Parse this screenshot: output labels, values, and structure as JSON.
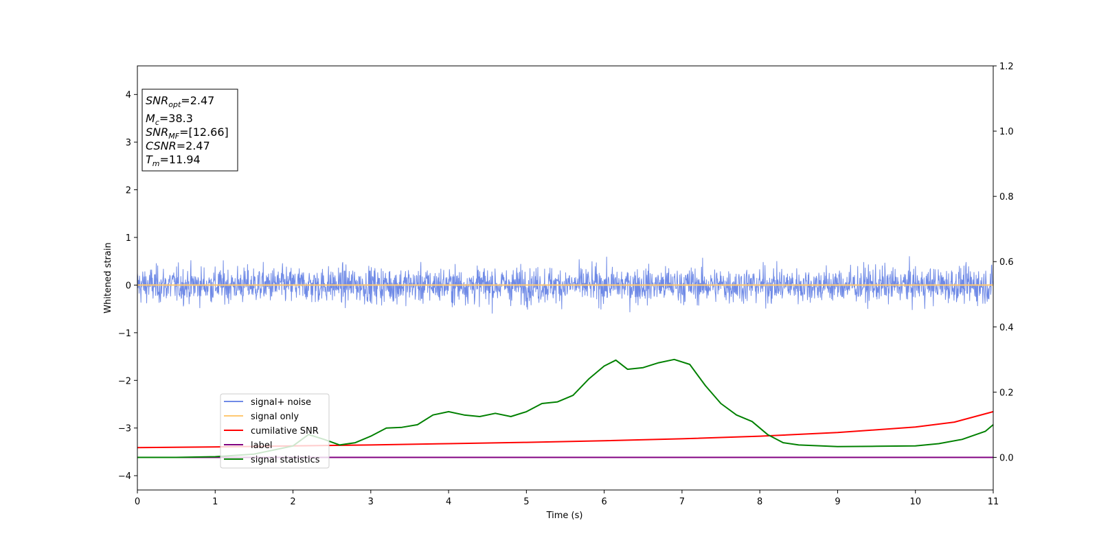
{
  "chart_data": {
    "type": "line",
    "xlabel": "Time (s)",
    "ylabel": "Whitened strain",
    "xlim": [
      0,
      11
    ],
    "ylim_left": [
      -4.3,
      4.6
    ],
    "ylim_right": [
      -0.1,
      1.2
    ],
    "xticks": [
      0,
      1,
      2,
      3,
      4,
      5,
      6,
      7,
      8,
      9,
      10,
      11
    ],
    "yticks_left": [
      -4,
      -3,
      -2,
      -1,
      0,
      1,
      2,
      3,
      4
    ],
    "yticks_right": [
      0.0,
      0.2,
      0.4,
      0.6,
      0.8,
      1.0,
      1.2
    ],
    "grid": false,
    "legend_placement": "lower-left",
    "info_box": {
      "snr_opt": {
        "var": "SNR",
        "sub": "opt",
        "value": "=2.47"
      },
      "mc": {
        "var": "M",
        "sub": "c",
        "value": "=38.3"
      },
      "snr_mf": {
        "var": "SNR",
        "sub": "MF",
        "value": "=[12.66]"
      },
      "csnr": {
        "var": "CSNR",
        "sub": "",
        "value": "=2.47"
      },
      "tm": {
        "var": "T",
        "sub": "m",
        "value": "=11.94"
      }
    },
    "series": [
      {
        "name": "signal+ noise",
        "axis": "left",
        "color": "#6f8ae6",
        "style": "noise",
        "amplitude_sigma": 0.24,
        "peak_excursion": [
          -0.95,
          0.95
        ],
        "mean": 0.0
      },
      {
        "name": "signal only",
        "axis": "left",
        "color": "#ffc870",
        "x": [
          0,
          11
        ],
        "y": [
          0.0,
          0.0
        ]
      },
      {
        "name": "cumilative SNR",
        "axis": "right",
        "color": "#ff0000",
        "x": [
          0,
          1,
          2,
          3,
          4,
          5,
          6,
          7,
          8,
          9,
          10,
          10.5,
          11
        ],
        "y": [
          0.03,
          0.032,
          0.035,
          0.038,
          0.042,
          0.046,
          0.051,
          0.057,
          0.065,
          0.076,
          0.093,
          0.108,
          0.14
        ]
      },
      {
        "name": "label",
        "axis": "right",
        "color": "#800080",
        "x": [
          0,
          11
        ],
        "y": [
          0.0,
          0.0
        ]
      },
      {
        "name": "signal statistics",
        "axis": "right",
        "color": "#008000",
        "x": [
          0,
          0.5,
          1.0,
          1.5,
          1.8,
          2.0,
          2.2,
          2.4,
          2.6,
          2.8,
          3.0,
          3.2,
          3.4,
          3.6,
          3.8,
          4.0,
          4.2,
          4.4,
          4.6,
          4.8,
          5.0,
          5.2,
          5.4,
          5.6,
          5.8,
          6.0,
          6.15,
          6.3,
          6.5,
          6.7,
          6.9,
          7.1,
          7.3,
          7.5,
          7.7,
          7.9,
          8.1,
          8.3,
          8.5,
          9.0,
          9.5,
          10.0,
          10.3,
          10.6,
          10.9,
          11.0
        ],
        "y": [
          0.0,
          0.0,
          0.002,
          0.01,
          0.025,
          0.035,
          0.07,
          0.055,
          0.038,
          0.045,
          0.065,
          0.09,
          0.092,
          0.1,
          0.13,
          0.14,
          0.13,
          0.125,
          0.135,
          0.125,
          0.14,
          0.165,
          0.17,
          0.19,
          0.24,
          0.28,
          0.298,
          0.27,
          0.275,
          0.29,
          0.3,
          0.285,
          0.22,
          0.165,
          0.13,
          0.11,
          0.07,
          0.045,
          0.038,
          0.033,
          0.034,
          0.035,
          0.042,
          0.055,
          0.08,
          0.1
        ]
      }
    ]
  }
}
